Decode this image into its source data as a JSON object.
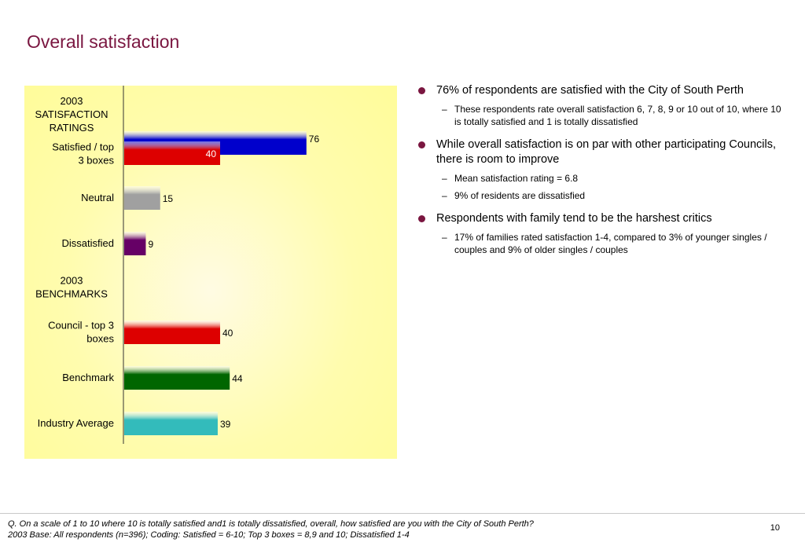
{
  "title": "Overall satisfaction",
  "chart_data": {
    "type": "bar",
    "orientation": "horizontal",
    "rows": [
      {
        "label": "2003 SATISFACTION RATINGS",
        "header": true
      },
      {
        "label": "Satisfied / top 3 boxes",
        "bars": [
          {
            "value": 76,
            "color": "#0000cc",
            "label": "76"
          },
          {
            "value": 40,
            "color": "#dd0000",
            "label": "40",
            "label_inside": true
          }
        ]
      },
      {
        "label": "Neutral",
        "bars": [
          {
            "value": 15,
            "color": "#a0a0a0",
            "label": "15"
          }
        ]
      },
      {
        "label": "Dissatisfied",
        "bars": [
          {
            "value": 9,
            "color": "#660066",
            "label": "9"
          }
        ]
      },
      {
        "label": "2003 BENCHMARKS",
        "header": true
      },
      {
        "label": "Council - top 3 boxes",
        "bars": [
          {
            "value": 40,
            "color": "#dd0000",
            "label": "40"
          }
        ]
      },
      {
        "label": "Benchmark",
        "bars": [
          {
            "value": 44,
            "color": "#006600",
            "label": "44"
          }
        ]
      },
      {
        "label": "Industry Average",
        "bars": [
          {
            "value": 39,
            "color": "#33bbbb",
            "label": "39"
          }
        ]
      }
    ],
    "xlim": [
      0,
      100
    ],
    "grid": false,
    "title": "",
    "xlabel": "",
    "ylabel": ""
  },
  "bullets": [
    {
      "text": "76% of respondents are satisfied with the City of South Perth",
      "subs": [
        "These respondents rate overall satisfaction 6, 7, 8, 9 or 10 out of 10, where 10 is totally satisfied and 1 is totally dissatisfied"
      ]
    },
    {
      "text": "While overall satisfaction is on par with other participating Councils, there is room to improve",
      "subs": [
        "Mean satisfaction rating = 6.8",
        "9% of residents are dissatisfied"
      ]
    },
    {
      "text": "Respondents with family tend to be the harshest critics",
      "subs": [
        "17% of families rated satisfaction 1-4, compared to 3% of younger singles / couples and 9% of older singles / couples"
      ]
    }
  ],
  "sub_bullet_mark": "–",
  "footnote": {
    "line1": "Q. On a scale of 1 to 10 where 10 is totally satisfied and1 is totally dissatisfied, overall, how satisfied are you with the City of South Perth?",
    "line2": "2003 Base: All respondents (n=396);  Coding: Satisfied = 6-10; Top 3 boxes = 8,9 and 10; Dissatisfied 1-4"
  },
  "page_number": "10"
}
